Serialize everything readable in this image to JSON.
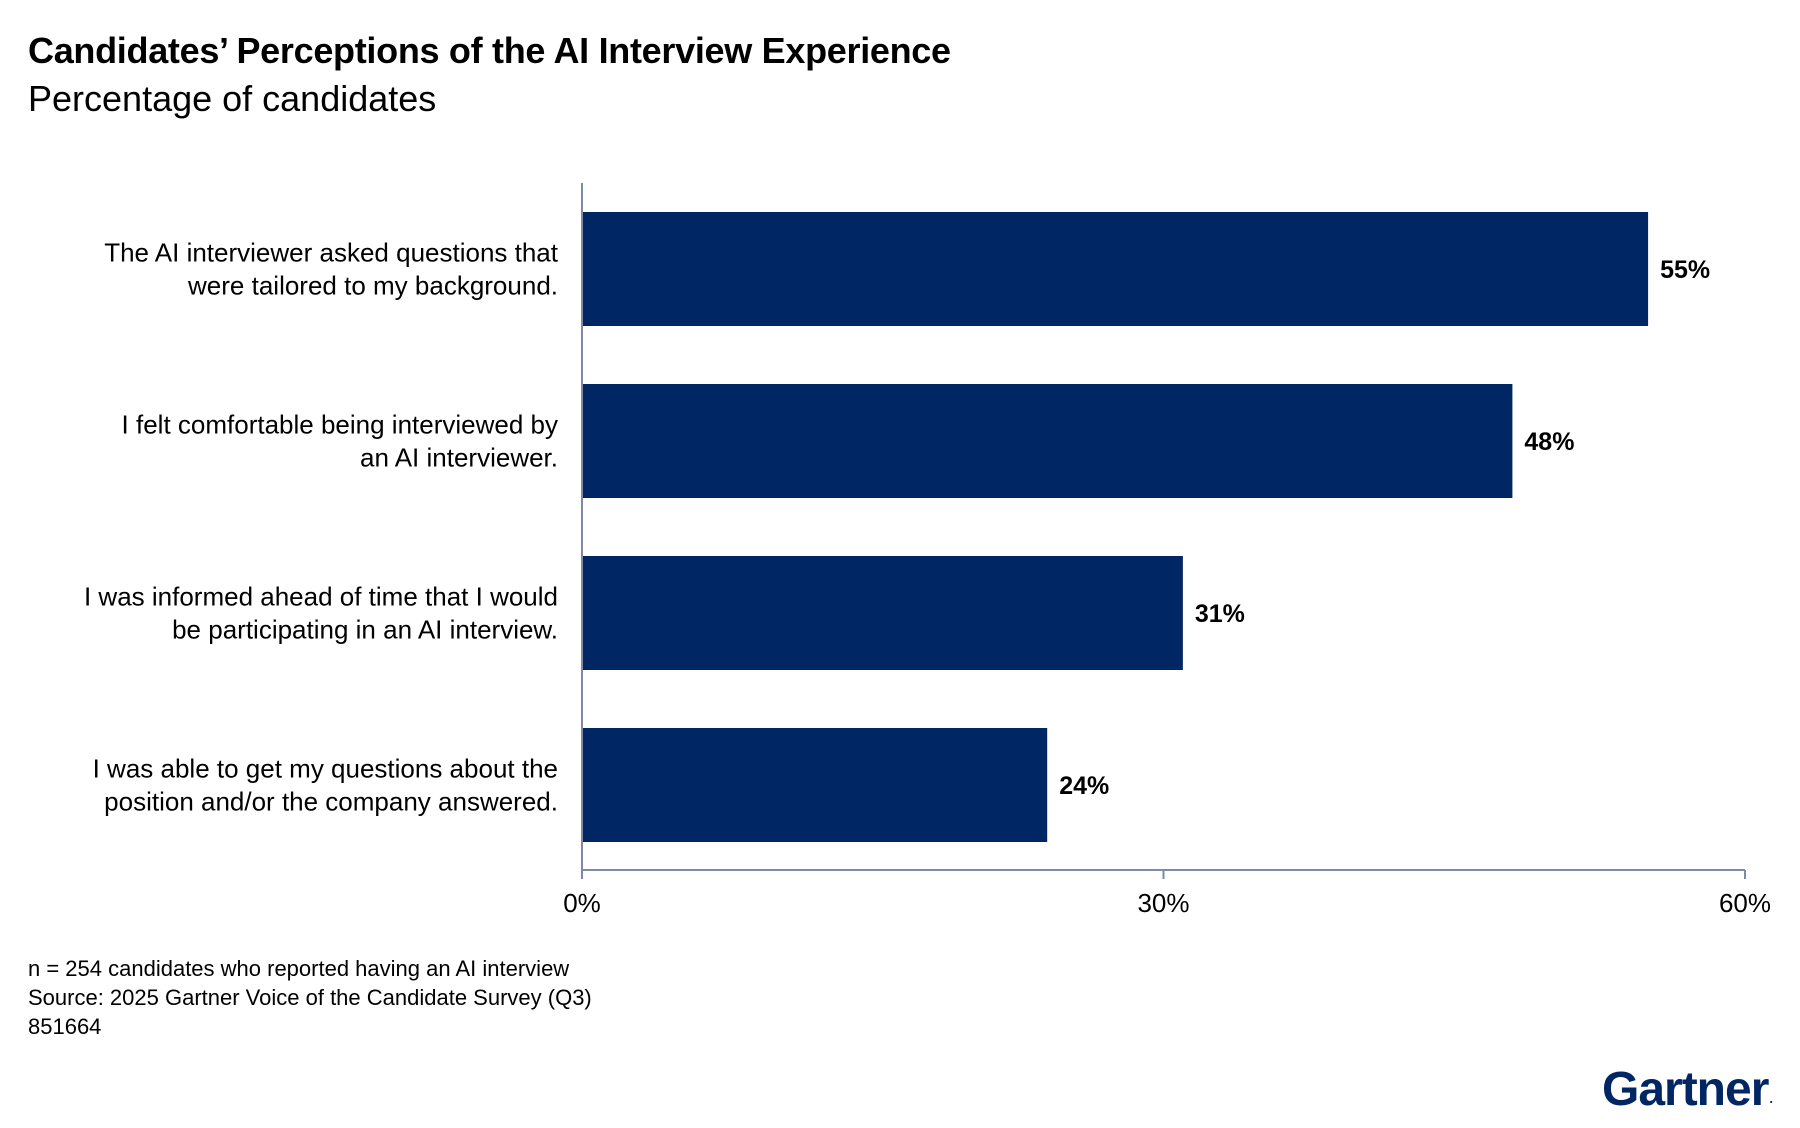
{
  "chart_data": {
    "type": "bar",
    "orientation": "horizontal",
    "title": "Candidates’ Perceptions of the AI Interview Experience",
    "subtitle": "Percentage of candidates",
    "categories": [
      [
        "The AI interviewer asked questions that",
        "were tailored to my background."
      ],
      [
        "I felt comfortable being interviewed by",
        "an AI interviewer."
      ],
      [
        "I was informed ahead of time that I would",
        "be participating in an AI interview."
      ],
      [
        "I was able to get my questions about the",
        "position and/or the company answered."
      ]
    ],
    "values": [
      55,
      48,
      31,
      24
    ],
    "value_labels": [
      "55%",
      "48%",
      "31%",
      "24%"
    ],
    "xlim": [
      0,
      60
    ],
    "xticks": [
      0,
      30,
      60
    ],
    "xtick_labels": [
      "0%",
      "30%",
      "60%"
    ],
    "grid": false,
    "legend": "none"
  },
  "colors": {
    "bar": "#002663",
    "axis": "#7f8ba6",
    "logo": "#002663"
  },
  "footnotes": {
    "sample": "n = 254 candidates who reported having an AI interview",
    "source": "Source: 2025 Gartner Voice of the Candidate Survey (Q3)",
    "id": "851664"
  },
  "logo": {
    "text": "Gartner",
    "mark": "."
  }
}
